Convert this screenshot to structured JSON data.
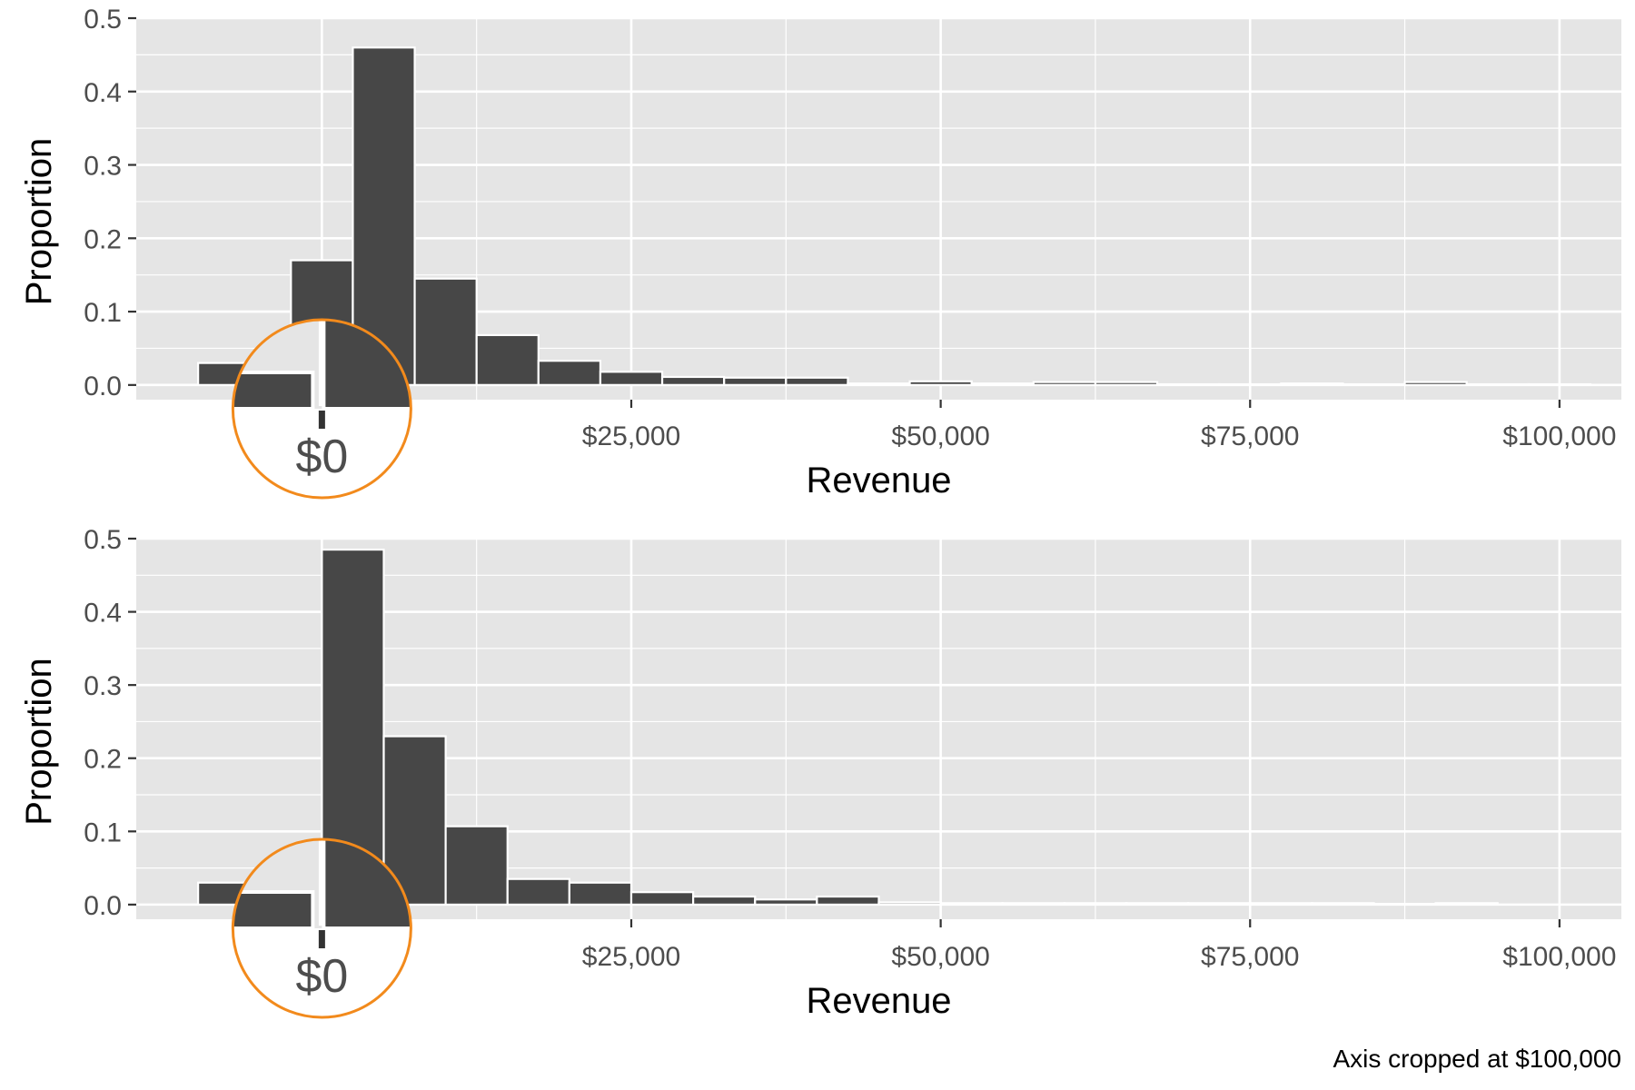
{
  "colors": {
    "panel_bg": "#e5e5e5",
    "grid": "#ffffff",
    "bar_fill": "#474747",
    "bar_stroke": "#ffffff",
    "tick_text": "#4d4d4d",
    "highlight": "#f28a1c"
  },
  "caption": "Axis cropped at $100,000",
  "chart_data": [
    {
      "type": "bar",
      "subtype": "histogram",
      "title": "",
      "xlabel": "Revenue",
      "ylabel": "Proportion",
      "xlim": [
        -15000,
        105000
      ],
      "ylim": [
        -0.02,
        0.5
      ],
      "grid": true,
      "x_ticks": [
        0,
        25000,
        50000,
        75000,
        100000
      ],
      "x_tick_labels": [
        "$0",
        "$25,000",
        "$50,000",
        "$75,000",
        "$100,000"
      ],
      "y_ticks": [
        0.0,
        0.1,
        0.2,
        0.3,
        0.4,
        0.5
      ],
      "y_tick_labels": [
        "0.0",
        "0.1",
        "0.2",
        "0.3",
        "0.4",
        "0.5"
      ],
      "bin_width": 5000,
      "bin_starts": [
        -10000,
        -2500,
        2500,
        7500,
        12500,
        17500,
        22500,
        27500,
        32500,
        37500,
        42500,
        47500,
        52500,
        57500,
        62500,
        67500,
        72500,
        77500,
        82500,
        87500,
        92500,
        97500
      ],
      "values": [
        0.03,
        0.17,
        0.46,
        0.145,
        0.068,
        0.033,
        0.018,
        0.011,
        0.01,
        0.01,
        0.002,
        0.005,
        0.002,
        0.004,
        0.004,
        0.001,
        0.001,
        0.002,
        0.001,
        0.004,
        0.001,
        0.001
      ],
      "highlight_circle": {
        "x": 0,
        "label": "$0"
      }
    },
    {
      "type": "bar",
      "subtype": "histogram",
      "title": "",
      "xlabel": "Revenue",
      "ylabel": "Proportion",
      "xlim": [
        -15000,
        105000
      ],
      "ylim": [
        -0.02,
        0.5
      ],
      "grid": true,
      "x_ticks": [
        0,
        25000,
        50000,
        75000,
        100000
      ],
      "x_tick_labels": [
        "$0",
        "$25,000",
        "$50,000",
        "$75,000",
        "$100,000"
      ],
      "y_ticks": [
        0.0,
        0.1,
        0.2,
        0.3,
        0.4,
        0.5
      ],
      "y_tick_labels": [
        "0.0",
        "0.1",
        "0.2",
        "0.3",
        "0.4",
        "0.5"
      ],
      "bin_width": 5000,
      "bin_starts": [
        -10000,
        0,
        5000,
        10000,
        15000,
        20000,
        25000,
        30000,
        35000,
        40000,
        45000,
        50000,
        55000,
        60000,
        65000,
        70000,
        75000,
        80000,
        85000,
        90000
      ],
      "values": [
        0.03,
        0.485,
        0.23,
        0.107,
        0.035,
        0.03,
        0.017,
        0.011,
        0.007,
        0.011,
        0.003,
        0.002,
        0.002,
        0.002,
        0.002,
        0.002,
        0.002,
        0.002,
        0.001,
        0.002
      ],
      "highlight_circle": {
        "x": 0,
        "label": "$0"
      }
    }
  ]
}
